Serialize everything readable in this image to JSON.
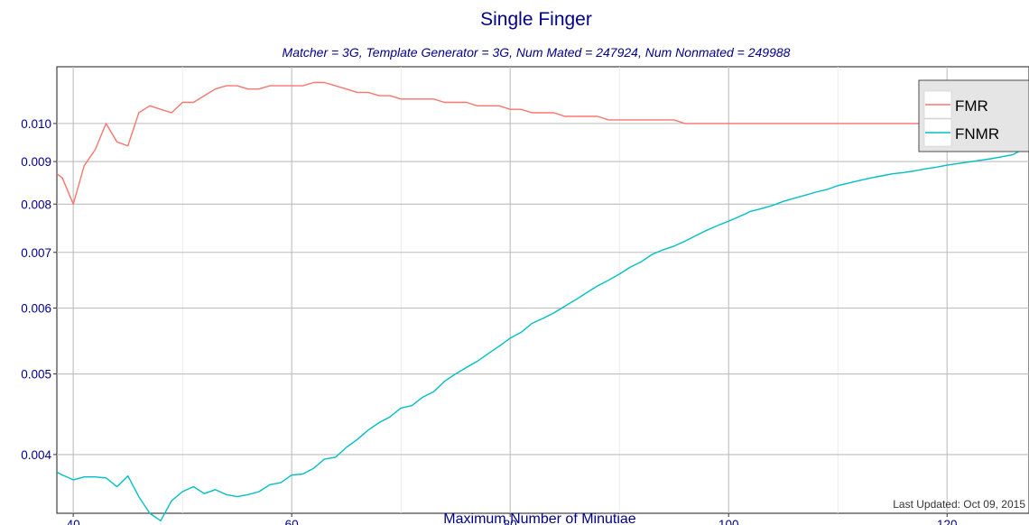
{
  "chart_data": {
    "type": "line",
    "title": "Single Finger",
    "subtitle": "Matcher = 3G,   Template Generator = 3G,   Num Mated = 247924,   Num Nonmated = 249988",
    "xlabel": "Maximum Number of Minutiae",
    "ylabel": "",
    "xlim": [
      38.5,
      127.5
    ],
    "ylim": [
      0.0034,
      0.0117
    ],
    "y_scale": "log",
    "x_ticks": [
      40,
      60,
      80,
      100,
      120
    ],
    "x_tick_labels": [
      "40",
      "60",
      "80",
      "100",
      "120"
    ],
    "y_ticks": [
      0.004,
      0.005,
      0.006,
      0.007,
      0.008,
      0.009,
      0.01
    ],
    "y_tick_labels": [
      "0.004",
      "0.005",
      "0.006",
      "0.007",
      "0.008",
      "0.009",
      "0.010"
    ],
    "grid": true,
    "legend_position": "top-right",
    "footnote": "Last Updated: Oct 09, 2015",
    "series": [
      {
        "name": "FMR",
        "color": "#F8766D",
        "x": [
          38.5,
          39,
          40,
          41,
          42,
          43,
          44,
          45,
          46,
          47,
          48,
          49,
          50,
          51,
          52,
          53,
          54,
          55,
          56,
          57,
          58,
          59,
          60,
          61,
          62,
          63,
          64,
          65,
          66,
          67,
          68,
          69,
          70,
          71,
          72,
          73,
          74,
          75,
          76,
          77,
          78,
          79,
          80,
          81,
          82,
          83,
          84,
          85,
          86,
          87,
          88,
          89,
          90,
          91,
          92,
          93,
          94,
          95,
          96,
          97,
          98,
          99,
          100,
          101,
          102,
          103,
          104,
          105,
          106,
          107,
          108,
          109,
          110,
          111,
          112,
          113,
          114,
          115,
          116,
          117,
          118,
          119,
          120,
          121,
          122,
          123,
          124,
          125,
          126,
          127,
          127.5
        ],
        "values": [
          0.0087,
          0.0086,
          0.008,
          0.0089,
          0.0093,
          0.01,
          0.0095,
          0.0094,
          0.0103,
          0.0105,
          0.0104,
          0.0103,
          0.0106,
          0.0106,
          0.0108,
          0.011,
          0.0111,
          0.0111,
          0.011,
          0.011,
          0.0111,
          0.0111,
          0.0111,
          0.0111,
          0.0112,
          0.0112,
          0.0111,
          0.011,
          0.0109,
          0.0109,
          0.0108,
          0.0108,
          0.0107,
          0.0107,
          0.0107,
          0.0107,
          0.0106,
          0.0106,
          0.0106,
          0.0105,
          0.0105,
          0.0105,
          0.0104,
          0.0104,
          0.0103,
          0.0103,
          0.0103,
          0.0102,
          0.0102,
          0.0102,
          0.0102,
          0.0101,
          0.0101,
          0.0101,
          0.0101,
          0.0101,
          0.0101,
          0.0101,
          0.01,
          0.01,
          0.01,
          0.01,
          0.01,
          0.01,
          0.01,
          0.01,
          0.01,
          0.01,
          0.01,
          0.01,
          0.01,
          0.01,
          0.01,
          0.01,
          0.01,
          0.01,
          0.01,
          0.01,
          0.01,
          0.01,
          0.01,
          0.01,
          0.01,
          0.01,
          0.01,
          0.01,
          0.01,
          0.01,
          0.01,
          0.01,
          0.01
        ]
      },
      {
        "name": "FNMR",
        "color": "#00BFC4",
        "x": [
          38.5,
          39,
          40,
          41,
          42,
          43,
          44,
          45,
          46,
          47,
          48,
          49,
          50,
          51,
          52,
          53,
          54,
          55,
          56,
          57,
          58,
          59,
          60,
          61,
          62,
          63,
          64,
          65,
          66,
          67,
          68,
          69,
          70,
          71,
          72,
          73,
          74,
          75,
          76,
          77,
          78,
          79,
          80,
          81,
          82,
          83,
          84,
          85,
          86,
          87,
          88,
          89,
          90,
          91,
          92,
          93,
          94,
          95,
          96,
          97,
          98,
          99,
          100,
          101,
          102,
          103,
          104,
          105,
          106,
          107,
          108,
          109,
          110,
          111,
          112,
          113,
          114,
          115,
          116,
          117,
          118,
          119,
          120,
          121,
          122,
          123,
          124,
          125,
          126,
          127,
          127.5
        ],
        "values": [
          0.00381,
          0.00378,
          0.00373,
          0.00376,
          0.00376,
          0.00375,
          0.00366,
          0.00377,
          0.00356,
          0.0034,
          0.00333,
          0.00352,
          0.00361,
          0.00366,
          0.00359,
          0.00363,
          0.00358,
          0.00356,
          0.00358,
          0.00361,
          0.00368,
          0.0037,
          0.00378,
          0.00379,
          0.00385,
          0.00395,
          0.00397,
          0.00408,
          0.00417,
          0.00428,
          0.00437,
          0.00444,
          0.00455,
          0.00458,
          0.00469,
          0.00476,
          0.0049,
          0.005,
          0.00509,
          0.00518,
          0.00529,
          0.0054,
          0.00552,
          0.00561,
          0.00575,
          0.00583,
          0.00592,
          0.00603,
          0.00614,
          0.00626,
          0.00638,
          0.00648,
          0.00659,
          0.00672,
          0.00682,
          0.00696,
          0.00705,
          0.00712,
          0.00722,
          0.00733,
          0.00744,
          0.00754,
          0.00763,
          0.00773,
          0.00784,
          0.0079,
          0.00797,
          0.00806,
          0.00813,
          0.0082,
          0.00827,
          0.00833,
          0.00842,
          0.00848,
          0.00854,
          0.0086,
          0.00865,
          0.0087,
          0.00873,
          0.00877,
          0.00882,
          0.00886,
          0.00891,
          0.00895,
          0.00899,
          0.00903,
          0.00907,
          0.00912,
          0.00917,
          0.00932,
          0.0096
        ]
      }
    ]
  }
}
